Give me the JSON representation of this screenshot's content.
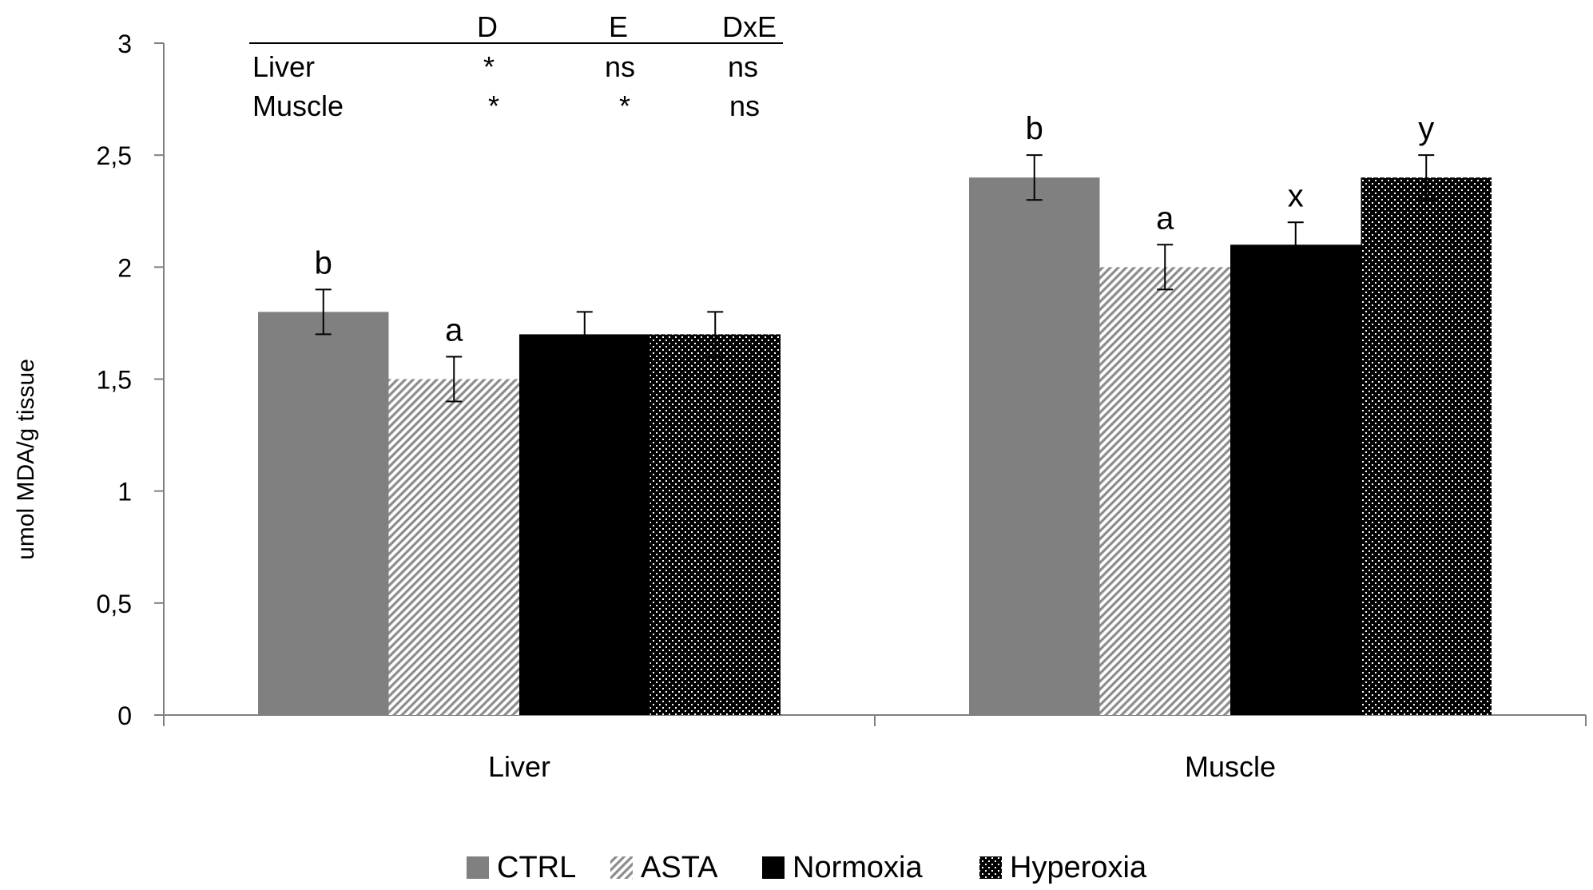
{
  "chart_data": {
    "type": "bar",
    "title": "",
    "xlabel": "",
    "ylabel": "umol MDA/g tissue",
    "ylim": [
      0,
      3
    ],
    "yticks": [
      0,
      0.5,
      1,
      1.5,
      2,
      2.5,
      3
    ],
    "ytick_labels": [
      "0",
      "0,5",
      "1",
      "1,5",
      "2",
      "2,5",
      "3"
    ],
    "grid": false,
    "legend_position": "bottom",
    "categories": [
      "Liver",
      "Muscle"
    ],
    "series": [
      {
        "name": "CTRL",
        "pattern": "solid-gray",
        "values": [
          1.8,
          2.4
        ],
        "errors": [
          0.1,
          0.1
        ],
        "letters": [
          "b",
          "b"
        ]
      },
      {
        "name": "ASTA",
        "pattern": "diagonal-hatch",
        "values": [
          1.5,
          2.0
        ],
        "errors": [
          0.1,
          0.1
        ],
        "letters": [
          "a",
          "a"
        ]
      },
      {
        "name": "Normoxia",
        "pattern": "solid-black",
        "values": [
          1.7,
          2.1
        ],
        "errors": [
          0.1,
          0.1
        ],
        "letters": [
          "",
          "x"
        ]
      },
      {
        "name": "Hyperoxia",
        "pattern": "dotted",
        "values": [
          1.7,
          2.4
        ],
        "errors": [
          0.1,
          0.1
        ],
        "letters": [
          "",
          "y"
        ]
      }
    ],
    "stats_table": {
      "headers": [
        "D",
        "E",
        "DxE"
      ],
      "rows": [
        {
          "label": "Liver",
          "values": [
            "*",
            "ns",
            "ns"
          ]
        },
        {
          "label": "Muscle",
          "values": [
            "*",
            "*",
            "ns"
          ]
        }
      ]
    }
  },
  "colors": {
    "CTRL": "#808080",
    "ASTA_bg": "#ffffff",
    "ASTA_line": "#8c8c8c",
    "Normoxia": "#000000",
    "Hyperoxia_bg": "#000000",
    "Hyperoxia_dot": "#ffffff",
    "axis": "#808080"
  }
}
